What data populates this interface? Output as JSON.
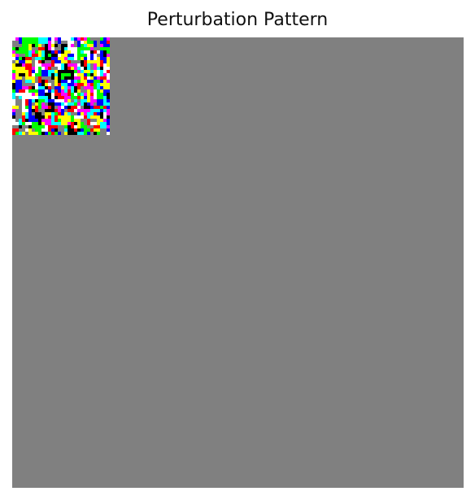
{
  "figure": {
    "title": "Perturbation Pattern"
  },
  "image": {
    "background_color": "#808080",
    "noise_palette": [
      "#ff0000",
      "#00ff00",
      "#0000ff",
      "#ffff00",
      "#ff00ff",
      "#00ffff",
      "#ffffff",
      "#000000",
      "#808080"
    ]
  }
}
